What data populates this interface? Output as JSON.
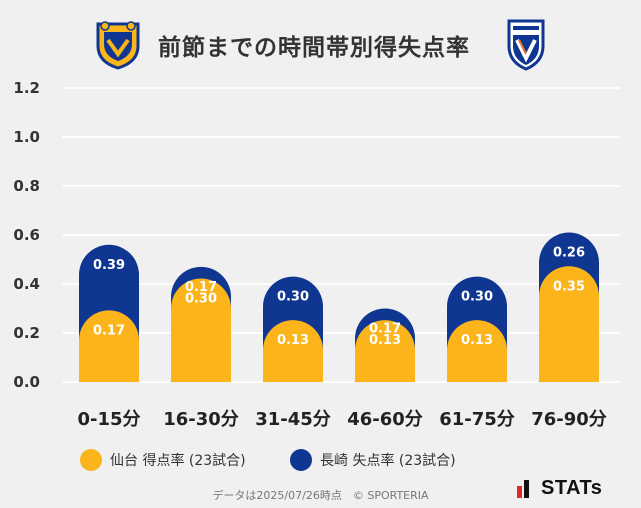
{
  "header": {
    "title": "前節までの時間帯別得失点率",
    "left_team_logo": "vegalta-sendai-crest",
    "right_team_logo": "v-varen-nagasaki-crest"
  },
  "chart_data": {
    "type": "bar",
    "title": "前節までの時間帯別得失点率",
    "categories": [
      "0-15分",
      "16-30分",
      "31-45分",
      "46-60分",
      "61-75分",
      "76-90分"
    ],
    "series": [
      {
        "name": "仙台 得点率 (23試合)",
        "color": "#fbb41a",
        "values": [
          0.17,
          0.3,
          0.13,
          0.13,
          0.13,
          0.35
        ]
      },
      {
        "name": "長崎 失点率 (23試合)",
        "color": "#0f3791",
        "values": [
          0.39,
          0.17,
          0.3,
          0.17,
          0.3,
          0.26
        ]
      }
    ],
    "ylim": [
      0,
      1.2
    ],
    "yticks": [
      "0.0",
      "0.2",
      "0.4",
      "0.6",
      "0.8",
      "1.0",
      "1.2"
    ],
    "grid": true,
    "stacked": true,
    "legend": "bottom"
  },
  "legend": {
    "sendai_label": "仙台 得点率 (23試合)",
    "nagasaki_label": "長崎 失点率 (23試合)"
  },
  "footer": {
    "note": "データは2025/07/26時点　© SPORTERIA"
  },
  "brand": {
    "name": "STATs"
  }
}
